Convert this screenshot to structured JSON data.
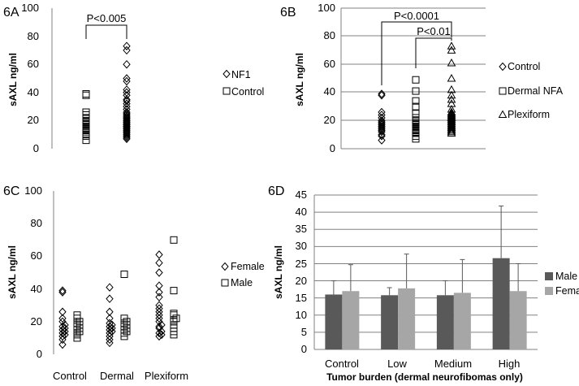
{
  "chart_data": [
    {
      "panel": "6A",
      "type": "scatter",
      "ylabel": "sAXL ng/ml",
      "ylim": [
        0,
        100
      ],
      "yticks": [
        "0",
        "20",
        "40",
        "60",
        "80",
        "100"
      ],
      "grid": false,
      "legend_position": "right",
      "annotation": {
        "text": "P<0.005",
        "from": "Control",
        "to": "NF1"
      },
      "series": [
        {
          "name": "NF1",
          "marker": "diamond",
          "x": "NF1",
          "values": [
            7,
            8,
            9,
            10,
            11,
            12,
            12,
            13,
            14,
            14,
            15,
            15,
            16,
            16,
            17,
            17,
            18,
            18,
            19,
            19,
            20,
            20,
            21,
            22,
            22,
            23,
            24,
            25,
            26,
            28,
            30,
            32,
            34,
            35,
            38,
            40,
            42,
            48,
            50,
            60,
            70,
            73
          ]
        },
        {
          "name": "Control",
          "marker": "square",
          "x": "Control",
          "values": [
            6,
            9,
            10,
            12,
            13,
            14,
            15,
            16,
            17,
            18,
            19,
            20,
            22,
            24,
            26,
            38,
            39
          ]
        }
      ]
    },
    {
      "panel": "6B",
      "type": "scatter",
      "ylabel": "sAXL ng/ml",
      "ylim": [
        0,
        100
      ],
      "yticks": [
        "0",
        "20",
        "40",
        "60",
        "80",
        "100"
      ],
      "grid": true,
      "legend_position": "right",
      "annotations": [
        {
          "text": "P<0.0001",
          "from": "Control",
          "to": "Plexiform"
        },
        {
          "text": "P<0.01",
          "from": "Dermal NFA",
          "to": "Plexiform"
        }
      ],
      "series": [
        {
          "name": "Control",
          "marker": "diamond",
          "x": "Control",
          "values": [
            6,
            9,
            10,
            12,
            13,
            14,
            15,
            16,
            17,
            18,
            19,
            20,
            22,
            24,
            26,
            38,
            39
          ]
        },
        {
          "name": "Dermal NFA",
          "marker": "square",
          "x": "Dermal NFA",
          "values": [
            7,
            9,
            11,
            12,
            13,
            14,
            15,
            16,
            17,
            18,
            19,
            20,
            22,
            25,
            30,
            34,
            41,
            49
          ]
        },
        {
          "name": "Plexiform",
          "marker": "triangle",
          "x": "Plexiform",
          "values": [
            11,
            12,
            13,
            14,
            15,
            16,
            17,
            18,
            19,
            20,
            21,
            22,
            23,
            24,
            25,
            26,
            28,
            32,
            35,
            38,
            42,
            50,
            61,
            70,
            73
          ]
        }
      ]
    },
    {
      "panel": "6C",
      "type": "scatter",
      "ylabel": "sAXL ng/ml",
      "ylim": [
        0,
        100
      ],
      "yticks": [
        "0",
        "20",
        "40",
        "60",
        "80",
        "100"
      ],
      "grid": false,
      "categories": [
        "Control",
        "Dermal",
        "Plexiform"
      ],
      "legend_position": "right",
      "series": [
        {
          "name": "Female",
          "marker": "diamond",
          "offset": "left",
          "groups": [
            [
              6,
              9,
              11,
              12,
              13,
              14,
              15,
              16,
              17,
              18,
              20,
              22,
              26,
              38,
              39
            ],
            [
              7,
              9,
              11,
              13,
              14,
              15,
              16,
              17,
              18,
              19,
              22,
              26,
              34,
              41
            ],
            [
              11,
              12,
              13,
              14,
              16,
              17,
              18,
              20,
              22,
              24,
              26,
              28,
              30,
              35,
              38,
              42,
              50,
              56,
              61
            ]
          ]
        },
        {
          "name": "Male",
          "marker": "square",
          "offset": "right",
          "groups": [
            [
              10,
              12,
              13,
              14,
              15,
              16,
              17,
              18,
              19,
              20,
              22,
              24
            ],
            [
              11,
              13,
              14,
              15,
              16,
              17,
              18,
              19,
              20,
              22,
              49
            ],
            [
              12,
              14,
              16,
              18,
              20,
              21,
              22,
              24,
              25,
              39,
              70
            ]
          ]
        }
      ]
    },
    {
      "panel": "6D",
      "type": "bar",
      "ylabel": "sAXL ng/ml",
      "xlabel": "Tumor  burden (dermal neurofibomas only)",
      "ylim": [
        0,
        45
      ],
      "yticks": [
        "0",
        "5",
        "10",
        "15",
        "20",
        "25",
        "30",
        "35",
        "40",
        "45"
      ],
      "grid": true,
      "categories": [
        "Control",
        "Low",
        "Medium",
        "High"
      ],
      "legend_position": "right",
      "series": [
        {
          "name": "Male",
          "color": "#595959",
          "values": [
            16.0,
            15.8,
            15.8,
            26.6
          ],
          "error_upper": [
            20.0,
            18.0,
            20.0,
            41.8
          ]
        },
        {
          "name": "Female",
          "color": "#a6a6a6",
          "values": [
            17.0,
            17.8,
            16.5,
            17.0
          ],
          "error_upper": [
            24.7,
            27.8,
            26.2,
            25.0
          ]
        }
      ]
    }
  ]
}
